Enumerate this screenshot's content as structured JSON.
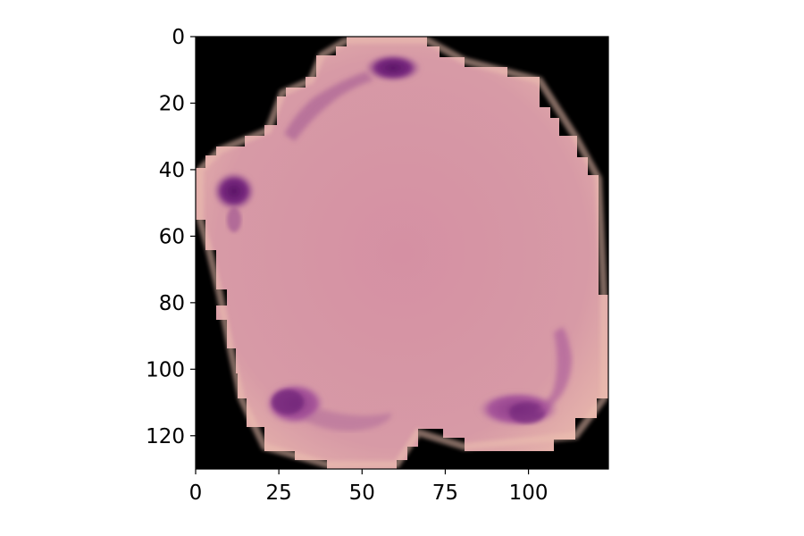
{
  "figure": {
    "type": "image",
    "description_visible": false,
    "axes": {
      "x_ticks": [
        "0",
        "25",
        "50",
        "75",
        "100"
      ],
      "y_ticks": [
        "0",
        "20",
        "40",
        "60",
        "80",
        "100",
        "120"
      ],
      "xlim": [
        0,
        124
      ],
      "ylim": [
        130,
        0
      ]
    },
    "colors": {
      "background": "#000000",
      "cell": "#d99aa8",
      "cell_edge": "#e9b8aa",
      "stain_dark": "#6f1f78",
      "stain_light": "#a8558e"
    }
  }
}
